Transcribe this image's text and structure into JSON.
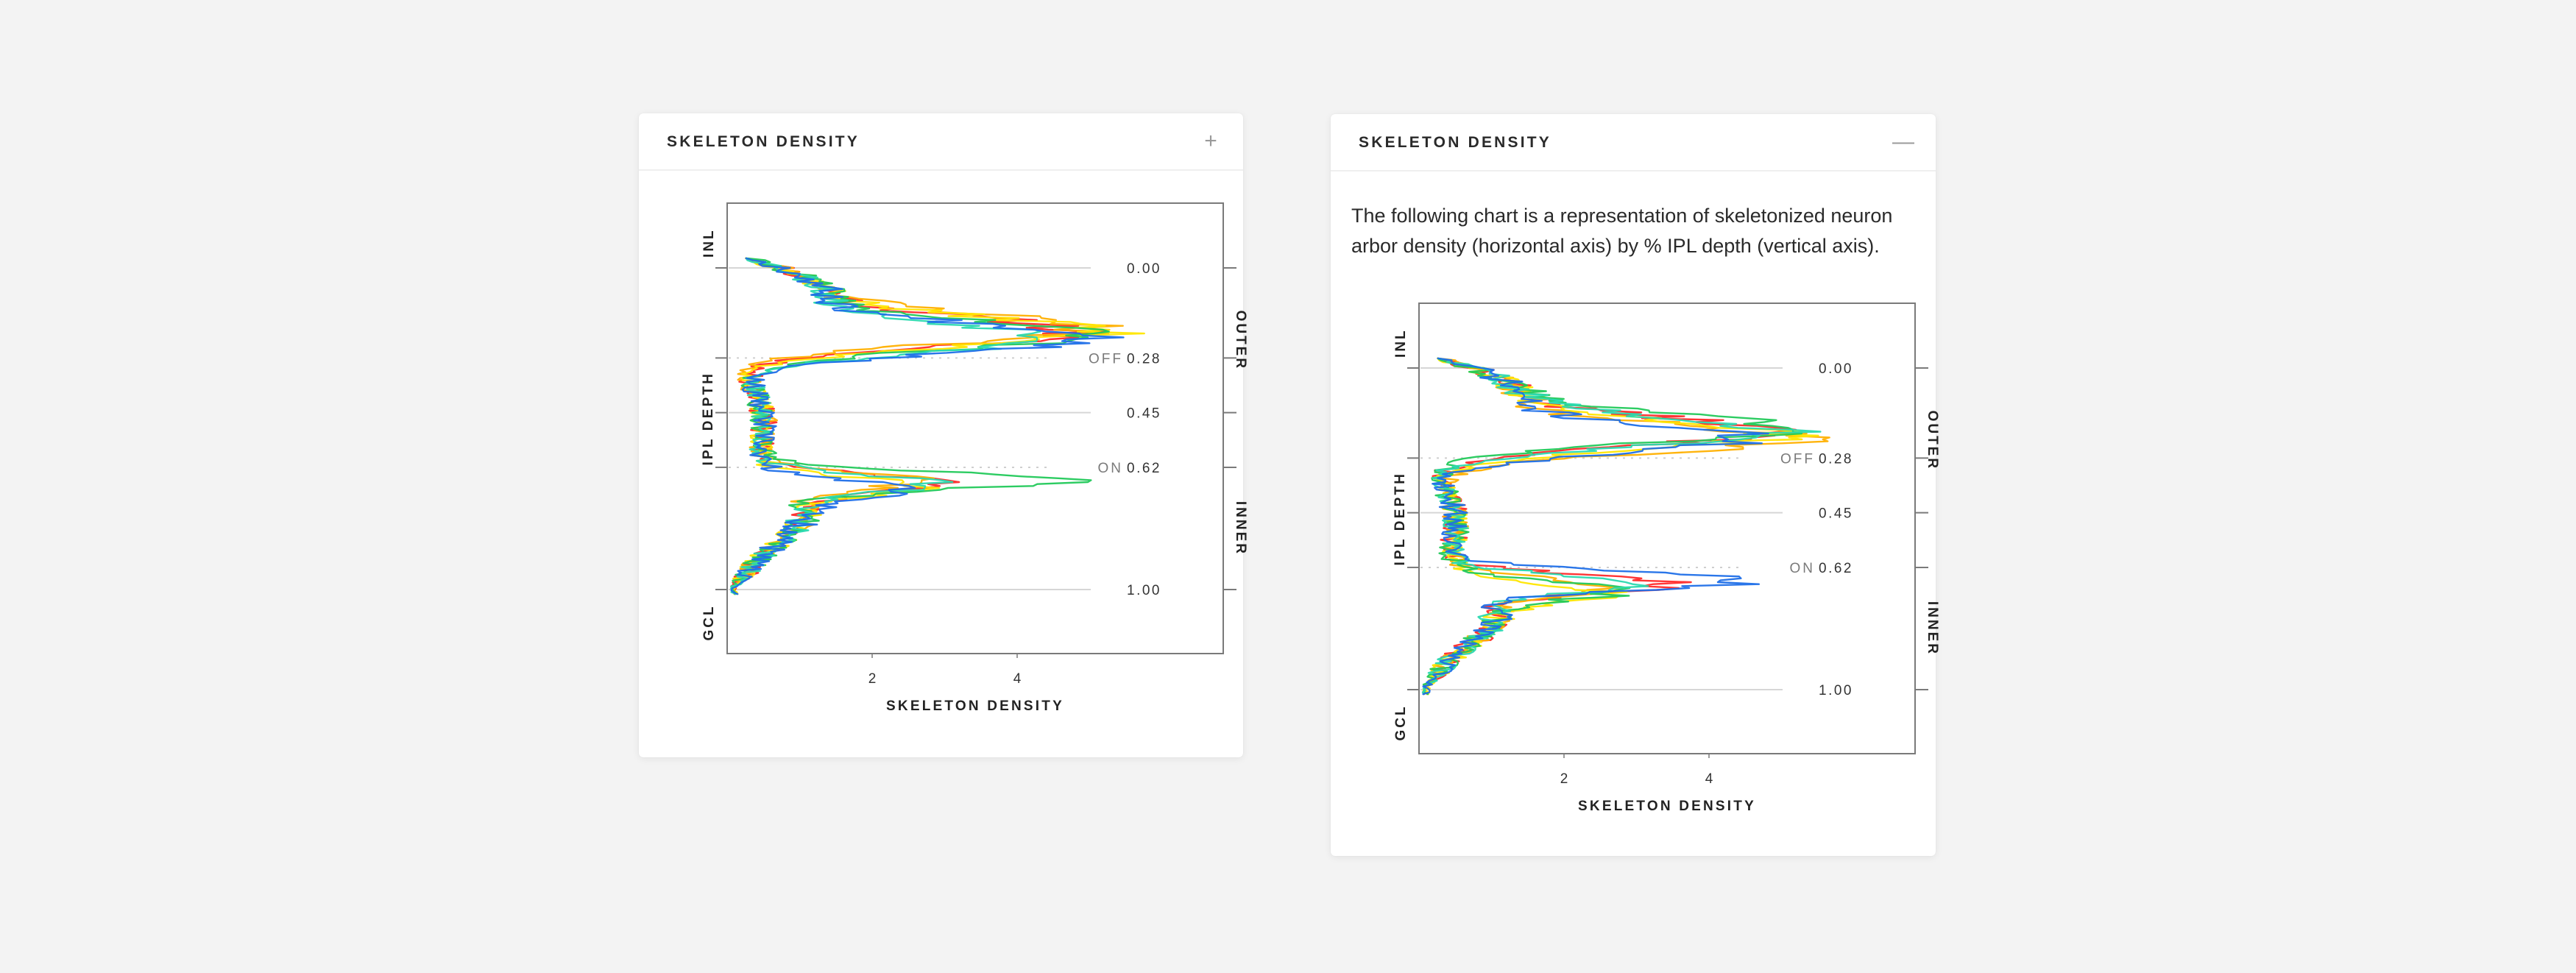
{
  "page": {
    "background": "#f3f3f3"
  },
  "cards": [
    {
      "id": "left",
      "title": "SKELETON DENSITY",
      "toggle_icon": "+",
      "toggle_icon_name": "plus-icon",
      "expanded": false
    },
    {
      "id": "right",
      "title": "SKELETON DENSITY",
      "toggle_icon": "—",
      "toggle_icon_name": "minus-icon",
      "expanded": true,
      "description": "The following chart is a representation of skeletonized neuron arbor density (horizontal axis) by % IPL depth (vertical axis)."
    }
  ],
  "chart_data": {
    "type": "line",
    "orientation": "vertical-depth",
    "xlabel": "SKELETON DENSITY",
    "ylabel": "IPL DEPTH",
    "x_ticks": [
      2,
      4
    ],
    "xlim": [
      0,
      6.8
    ],
    "ylim": [
      -0.2,
      1.2
    ],
    "y_reference_lines": [
      {
        "value": 0.0,
        "label": "0.00",
        "prefix": "",
        "style": "solid"
      },
      {
        "value": 0.28,
        "label": "0.28",
        "prefix": "OFF",
        "style": "dotted"
      },
      {
        "value": 0.45,
        "label": "0.45",
        "prefix": "",
        "style": "solid"
      },
      {
        "value": 0.62,
        "label": "0.62",
        "prefix": "ON",
        "style": "dotted"
      },
      {
        "value": 1.0,
        "label": "1.00",
        "prefix": "",
        "style": "solid"
      }
    ],
    "left_labels": {
      "top": "INL",
      "bottom": "GCL"
    },
    "right_labels": {
      "outer": "OUTER",
      "inner": "INNER"
    },
    "series_colors": [
      "#ff2a2a",
      "#ffb000",
      "#ffe600",
      "#22c95a",
      "#2bd9b0",
      "#1f6fe8"
    ],
    "charts": [
      {
        "card": "left",
        "series": [
          {
            "color": "#ff2a2a",
            "peak_off": 4.35,
            "peak_on": 2.35,
            "peak_off_depth": 0.2,
            "peak_on_depth": 0.67,
            "seed": 11
          },
          {
            "color": "#ffb000",
            "peak_off": 4.55,
            "peak_on": 1.95,
            "peak_off_depth": 0.19,
            "peak_on_depth": 0.66,
            "seed": 23
          },
          {
            "color": "#ffe600",
            "peak_off": 4.75,
            "peak_on": 1.85,
            "peak_off_depth": 0.2,
            "peak_on_depth": 0.68,
            "seed": 37
          },
          {
            "color": "#22c95a",
            "peak_off": 4.6,
            "peak_on": 3.85,
            "peak_off_depth": 0.21,
            "peak_on_depth": 0.66,
            "seed": 41
          },
          {
            "color": "#2bd9b0",
            "peak_off": 4.25,
            "peak_on": 2.15,
            "peak_off_depth": 0.22,
            "peak_on_depth": 0.67,
            "seed": 53
          },
          {
            "color": "#1f6fe8",
            "peak_off": 4.9,
            "peak_on": 1.75,
            "peak_off_depth": 0.22,
            "peak_on_depth": 0.69,
            "seed": 67
          }
        ]
      },
      {
        "card": "right",
        "series": [
          {
            "color": "#ff2a2a",
            "peak_off": 4.35,
            "peak_on": 2.75,
            "peak_off_depth": 0.2,
            "peak_on_depth": 0.67,
            "seed": 13
          },
          {
            "color": "#ffb000",
            "peak_off": 4.85,
            "peak_on": 1.95,
            "peak_off_depth": 0.22,
            "peak_on_depth": 0.68,
            "seed": 29
          },
          {
            "color": "#ffe600",
            "peak_off": 4.6,
            "peak_on": 1.85,
            "peak_off_depth": 0.21,
            "peak_on_depth": 0.7,
            "seed": 31
          },
          {
            "color": "#22c95a",
            "peak_off": 4.65,
            "peak_on": 2.05,
            "peak_off_depth": 0.19,
            "peak_on_depth": 0.69,
            "seed": 43
          },
          {
            "color": "#2bd9b0",
            "peak_off": 4.5,
            "peak_on": 2.35,
            "peak_off_depth": 0.2,
            "peak_on_depth": 0.67,
            "seed": 59
          },
          {
            "color": "#1f6fe8",
            "peak_off": 4.15,
            "peak_on": 3.85,
            "peak_off_depth": 0.22,
            "peak_on_depth": 0.66,
            "seed": 71
          }
        ]
      }
    ]
  }
}
